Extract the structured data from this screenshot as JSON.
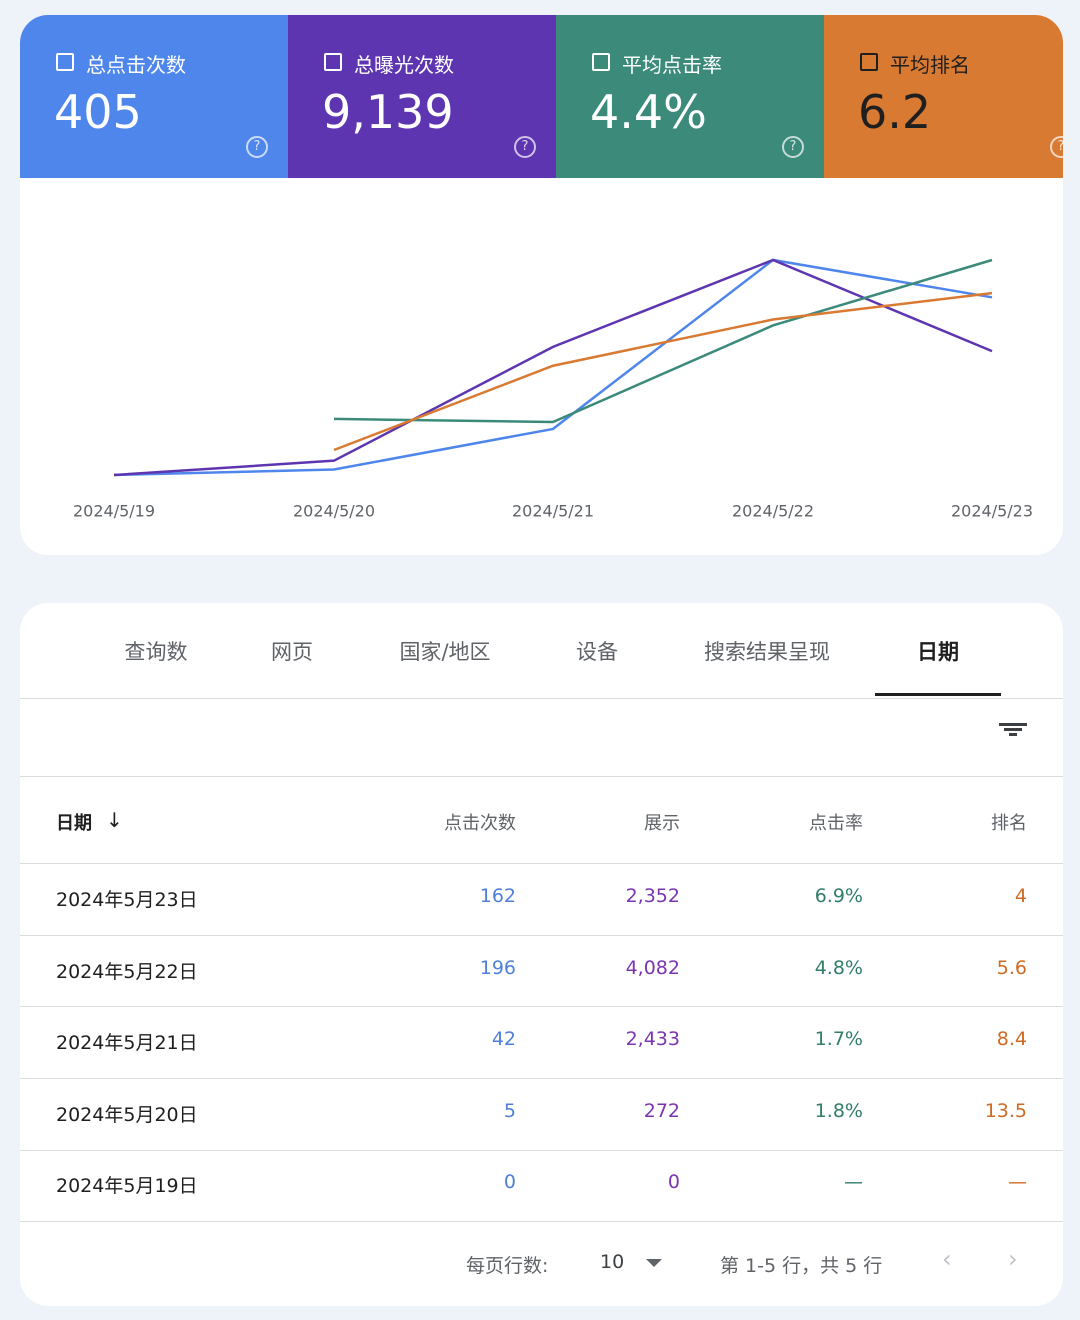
{
  "metrics": [
    {
      "label": "总点击次数",
      "value": "405",
      "color": "#4f86ec",
      "text_color": "#ffffff"
    },
    {
      "label": "总曝光次数",
      "value": "9,139",
      "color": "#5e35b1",
      "text_color": "#ffffff"
    },
    {
      "label": "平均点击率",
      "value": "4.4%",
      "color": "#3b8a7a",
      "text_color": "#ffffff"
    },
    {
      "label": "平均排名",
      "value": "6.2",
      "color": "#d97a33",
      "text_color": "#1f1f1f"
    }
  ],
  "chart_data": {
    "type": "line",
    "x": [
      "2024/5/19",
      "2024/5/20",
      "2024/5/21",
      "2024/5/22",
      "2024/5/23"
    ],
    "series": [
      {
        "color": "#4f86ec",
        "values": [
          0,
          5,
          42,
          196,
          162
        ]
      },
      {
        "color": "#5e35b1",
        "values": [
          0,
          272,
          2433,
          4082,
          2352
        ]
      },
      {
        "color": "#3b8a7a",
        "values": [
          null,
          1.8,
          1.7,
          4.8,
          6.9
        ]
      },
      {
        "color": "#d97a33",
        "values": [
          null,
          13.5,
          8.4,
          5.6,
          4
        ],
        "inverted": true
      }
    ]
  },
  "tabs": [
    "查询数",
    "网页",
    "国家/地区",
    "设备",
    "搜索结果呈现",
    "日期"
  ],
  "table": {
    "columns": [
      "日期",
      "点击次数",
      "展示",
      "点击率",
      "排名"
    ],
    "rows": [
      [
        "2024年5月23日",
        "162",
        "2,352",
        "6.9%",
        "4"
      ],
      [
        "2024年5月22日",
        "196",
        "4,082",
        "4.8%",
        "5.6"
      ],
      [
        "2024年5月21日",
        "42",
        "2,433",
        "1.7%",
        "8.4"
      ],
      [
        "2024年5月20日",
        "5",
        "272",
        "1.8%",
        "13.5"
      ],
      [
        "2024年5月19日",
        "0",
        "0",
        "—",
        "—"
      ]
    ]
  },
  "pagination": {
    "rows_per_page_label": "每页行数:",
    "rows_per_page": "10",
    "range": "第 1-5 行，共 5 行"
  }
}
